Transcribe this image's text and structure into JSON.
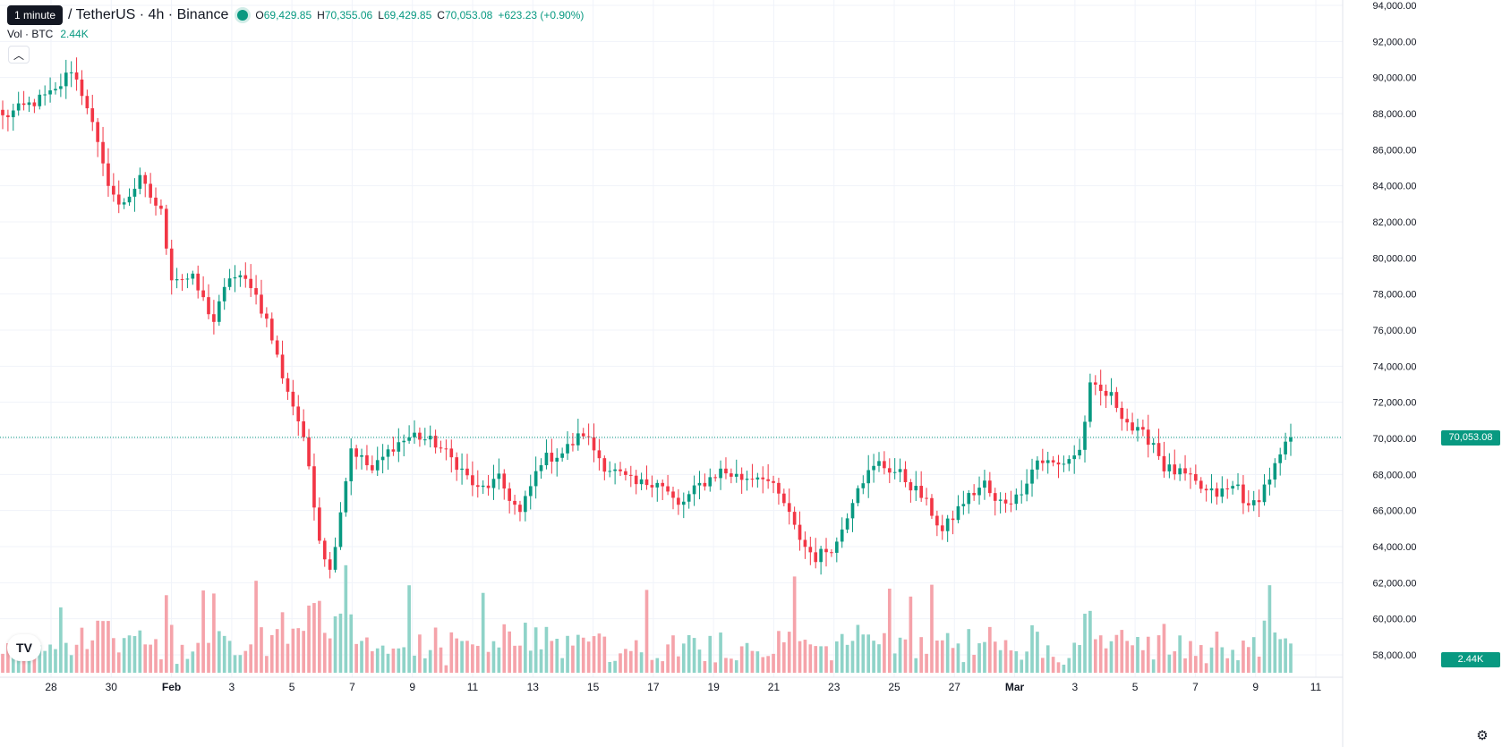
{
  "header": {
    "tooltip": "1 minute",
    "symbol": "/ TetherUS · 4h · Binance",
    "ohlc": [
      {
        "key": "O",
        "value": "69,429.85"
      },
      {
        "key": "H",
        "value": "70,355.06"
      },
      {
        "key": "L",
        "value": "69,429.85"
      },
      {
        "key": "C",
        "value": "70,053.08"
      }
    ],
    "change": "+623.23 (+0.90%)"
  },
  "volume_legend": {
    "label": "Vol · BTC",
    "value": "2.44K"
  },
  "collapse_icon": "chevron-up-icon",
  "logo_text": "TV",
  "settings_icon": "gear-icon",
  "colors": {
    "up": "#089981",
    "down": "#f23645",
    "vol_up": "#8fd3c8",
    "vol_down": "#f5a3aa",
    "grid": "#f0f3fa"
  },
  "price_axis": {
    "labels": [
      "94,000.00",
      "92,000.00",
      "90,000.00",
      "88,000.00",
      "86,000.00",
      "84,000.00",
      "82,000.00",
      "80,000.00",
      "78,000.00",
      "76,000.00",
      "74,000.00",
      "72,000.00",
      "70,000.00",
      "68,000.00",
      "66,000.00",
      "64,000.00",
      "62,000.00",
      "60,000.00",
      "58,000.00"
    ],
    "current_price": "70,053.08",
    "current_volume": "2.44K"
  },
  "time_axis": {
    "labels": [
      "28",
      "30",
      "Feb",
      "3",
      "5",
      "7",
      "9",
      "11",
      "13",
      "15",
      "17",
      "19",
      "21",
      "23",
      "25",
      "27",
      "Mar",
      "3",
      "5",
      "7",
      "9",
      "11"
    ]
  },
  "chart_data": {
    "type": "candlestick",
    "interval": "4h",
    "ylim": [
      58000,
      94000
    ],
    "keyframes": [
      [
        0,
        87800
      ],
      [
        10,
        89200
      ],
      [
        13,
        90500
      ],
      [
        16,
        88500
      ],
      [
        19,
        85000
      ],
      [
        22,
        82800
      ],
      [
        26,
        84300
      ],
      [
        30,
        82500
      ],
      [
        32,
        79000
      ],
      [
        36,
        78800
      ],
      [
        40,
        76500
      ],
      [
        43,
        79000
      ],
      [
        47,
        78600
      ],
      [
        50,
        76500
      ],
      [
        53,
        73500
      ],
      [
        56,
        71000
      ],
      [
        58,
        68500
      ],
      [
        60,
        64500
      ],
      [
        62,
        62600
      ],
      [
        66,
        69500
      ],
      [
        70,
        68200
      ],
      [
        74,
        69600
      ],
      [
        78,
        70200
      ],
      [
        82,
        69700
      ],
      [
        86,
        68600
      ],
      [
        90,
        67100
      ],
      [
        94,
        67700
      ],
      [
        98,
        65800
      ],
      [
        102,
        68800
      ],
      [
        106,
        69200
      ],
      [
        110,
        70300
      ],
      [
        114,
        68500
      ],
      [
        120,
        67400
      ],
      [
        124,
        67700
      ],
      [
        128,
        66200
      ],
      [
        132,
        67400
      ],
      [
        136,
        68200
      ],
      [
        140,
        67800
      ],
      [
        144,
        68000
      ],
      [
        148,
        66400
      ],
      [
        150,
        65000
      ],
      [
        152,
        64000
      ],
      [
        154,
        63400
      ],
      [
        158,
        64200
      ],
      [
        162,
        67500
      ],
      [
        166,
        68600
      ],
      [
        170,
        68000
      ],
      [
        174,
        66800
      ],
      [
        176,
        65900
      ],
      [
        178,
        64800
      ],
      [
        182,
        66500
      ],
      [
        186,
        67500
      ],
      [
        188,
        66400
      ],
      [
        192,
        66700
      ],
      [
        196,
        68800
      ],
      [
        200,
        68500
      ],
      [
        204,
        69300
      ],
      [
        206,
        72800
      ],
      [
        210,
        72300
      ],
      [
        214,
        70500
      ],
      [
        218,
        69800
      ],
      [
        220,
        68400
      ],
      [
        224,
        67900
      ],
      [
        228,
        67000
      ],
      [
        230,
        66900
      ],
      [
        234,
        67400
      ],
      [
        236,
        66000
      ],
      [
        238,
        66800
      ],
      [
        241,
        68400
      ],
      [
        244,
        70053.08
      ]
    ]
  }
}
